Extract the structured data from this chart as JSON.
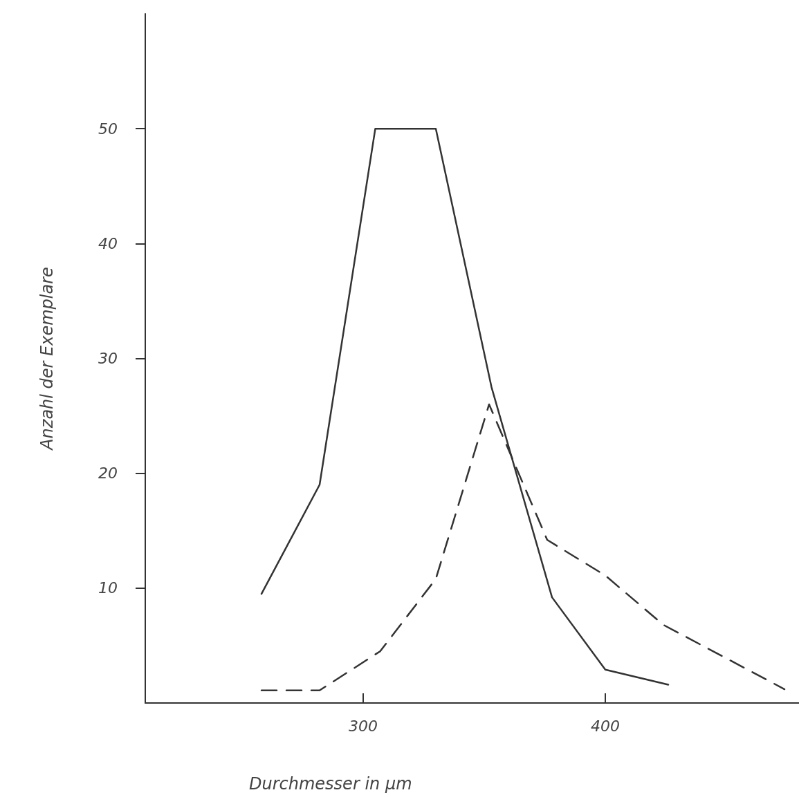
{
  "chart_data": {
    "type": "line",
    "xlabel": "Durchmesser in µm",
    "ylabel": "Anzahl der Exemplare",
    "xlim": [
      210,
      480
    ],
    "xticks": [
      300,
      400
    ],
    "ylim": [
      0,
      60
    ],
    "yticks": [
      10,
      20,
      30,
      40,
      50
    ],
    "grid": false,
    "marker": "none",
    "series": [
      {
        "color": "#333333",
        "line_style": "solid",
        "x": [
          258,
          282,
          305,
          330,
          353,
          378,
          400,
          426
        ],
        "values": [
          9.5,
          19,
          50,
          50,
          27.5,
          9.2,
          2.9,
          1.6
        ]
      },
      {
        "color": "#333333",
        "line_style": "dashed",
        "x": [
          258,
          282,
          307,
          330,
          352,
          376,
          400,
          424,
          474
        ],
        "values": [
          1.1,
          1.1,
          4.5,
          10.8,
          26,
          14.2,
          11.1,
          6.8,
          1.2
        ]
      }
    ]
  }
}
